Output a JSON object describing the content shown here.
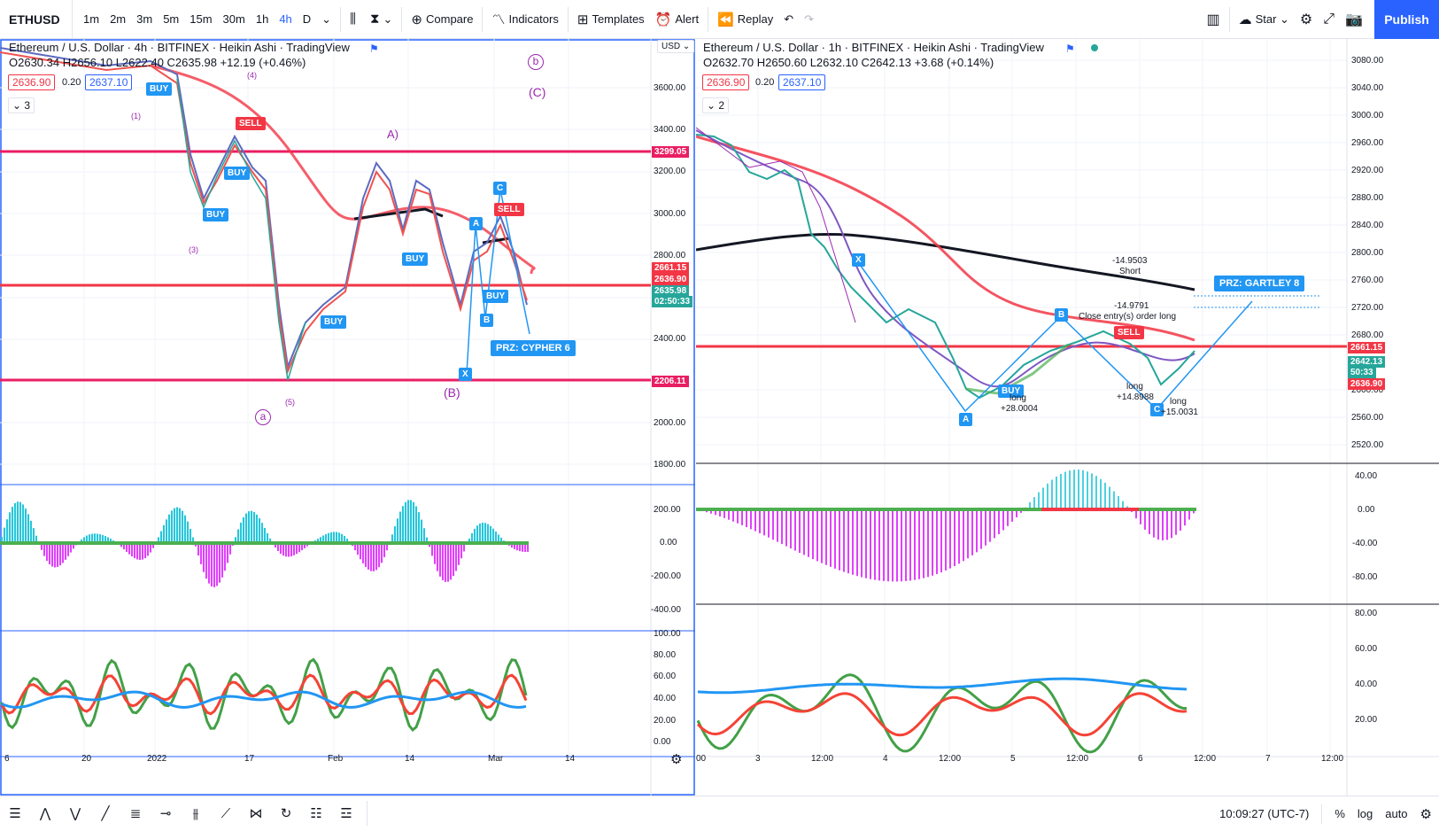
{
  "toolbar": {
    "symbol": "ETHUSD",
    "intervals": [
      "1m",
      "2m",
      "3m",
      "5m",
      "15m",
      "30m",
      "1h",
      "4h",
      "D"
    ],
    "active_interval": "4h",
    "compare_label": "Compare",
    "indicators_label": "Indicators",
    "templates_label": "Templates",
    "alert_label": "Alert",
    "replay_label": "Replay",
    "star_label": "Star",
    "publish_label": "Publish"
  },
  "left_chart": {
    "title": "Ethereum / U.S. Dollar · 4h · BITFINEX · Heikin Ashi · TradingView",
    "ohlc": "O2630.34 H2656.10 L2622.40 C2635.98 +12.19 (+0.46%)",
    "bid": "2636.90",
    "spread": "0.20",
    "ask": "2637.10",
    "collapse_count": "3",
    "currency": "USD",
    "price_axis": [
      "3600.00",
      "3400.00",
      "3200.00",
      "3000.00",
      "2800.00",
      "2400.00",
      "2200.00",
      "2000.00",
      "1800.00"
    ],
    "tags": [
      {
        "label": "3299.05",
        "color": "#e91e63"
      },
      {
        "label": "2661.15",
        "color": "#f23645"
      },
      {
        "label": "2636.90",
        "color": "#f23645"
      },
      {
        "label": "2635.98",
        "color": "#26a69a"
      },
      {
        "label": "02:50:33",
        "color": "#26a69a"
      },
      {
        "label": "2206.11",
        "color": "#e91e63"
      }
    ],
    "osc_axis": [
      "200.00",
      "0.00",
      "-200.00",
      "-400.00"
    ],
    "rsi_axis": [
      "100.00",
      "80.00",
      "60.00",
      "40.00",
      "20.00",
      "0.00"
    ],
    "time_axis": [
      "6",
      "20",
      "2022",
      "17",
      "Feb",
      "14",
      "Mar",
      "14"
    ],
    "waves": [
      "b",
      "(C)",
      "(4)",
      "(1)",
      "(3)",
      "(5)",
      "a",
      "A)",
      "(B)"
    ],
    "chips": [
      "BUY",
      "SELL",
      "BUY",
      "BUY",
      "BUY",
      "BUY",
      "A",
      "C",
      "X",
      "B",
      "SELL",
      "BUY"
    ],
    "prz_label": "PRZ: CYPHER 6"
  },
  "right_chart": {
    "title": "Ethereum / U.S. Dollar · 1h · BITFINEX · Heikin Ashi · TradingView",
    "ohlc": "O2632.70 H2650.60 L2632.10 C2642.13 +3.68 (+0.14%)",
    "bid": "2636.90",
    "spread": "0.20",
    "ask": "2637.10",
    "collapse_count": "2",
    "price_axis": [
      "3080.00",
      "3040.00",
      "3000.00",
      "2960.00",
      "2920.00",
      "2880.00",
      "2840.00",
      "2800.00",
      "2760.00",
      "2720.00",
      "2680.00",
      "2600.00",
      "2560.00",
      "2520.00"
    ],
    "tags": [
      {
        "label": "2661.15",
        "color": "#f23645"
      },
      {
        "label": "2642.13",
        "color": "#26a69a"
      },
      {
        "label": "50:33",
        "color": "#26a69a"
      },
      {
        "label": "2636.90",
        "color": "#f23645"
      }
    ],
    "osc_axis": [
      "40.00",
      "0.00",
      "-40.00",
      "-80.00"
    ],
    "rsi_axis": [
      "80.00",
      "60.00",
      "40.00",
      "20.00"
    ],
    "time_axis": [
      "00",
      "3",
      "12:00",
      "4",
      "12:00",
      "5",
      "12:00",
      "6",
      "12:00",
      "7",
      "12:00"
    ],
    "points": [
      "X",
      "A",
      "B",
      "C"
    ],
    "buy_chip": "BUY",
    "sell_chip": "SELL",
    "prz_label": "PRZ: GARTLEY 8",
    "annotations": {
      "short_value": "-14.9503",
      "short_label": "Short",
      "close_value": "-14.9791",
      "close_label": "Close entry(s) order long",
      "long1_label": "long",
      "long1_value": "+28.0004",
      "long2_label": "long",
      "long2_value": "+14.8988",
      "long3_label": "long",
      "long3_value": "+15.0031"
    }
  },
  "bottombar": {
    "time": "10:09:27 (UTC-7)",
    "percent": "%",
    "log": "log",
    "auto": "auto"
  },
  "colors": {
    "accent": "#2962ff",
    "red_line": "#f23645",
    "magenta_line": "#e91e63",
    "up": "#26a69a",
    "down": "#ef5350",
    "pattern_blue": "#2196f3",
    "wave_purple": "#9c27b0"
  }
}
